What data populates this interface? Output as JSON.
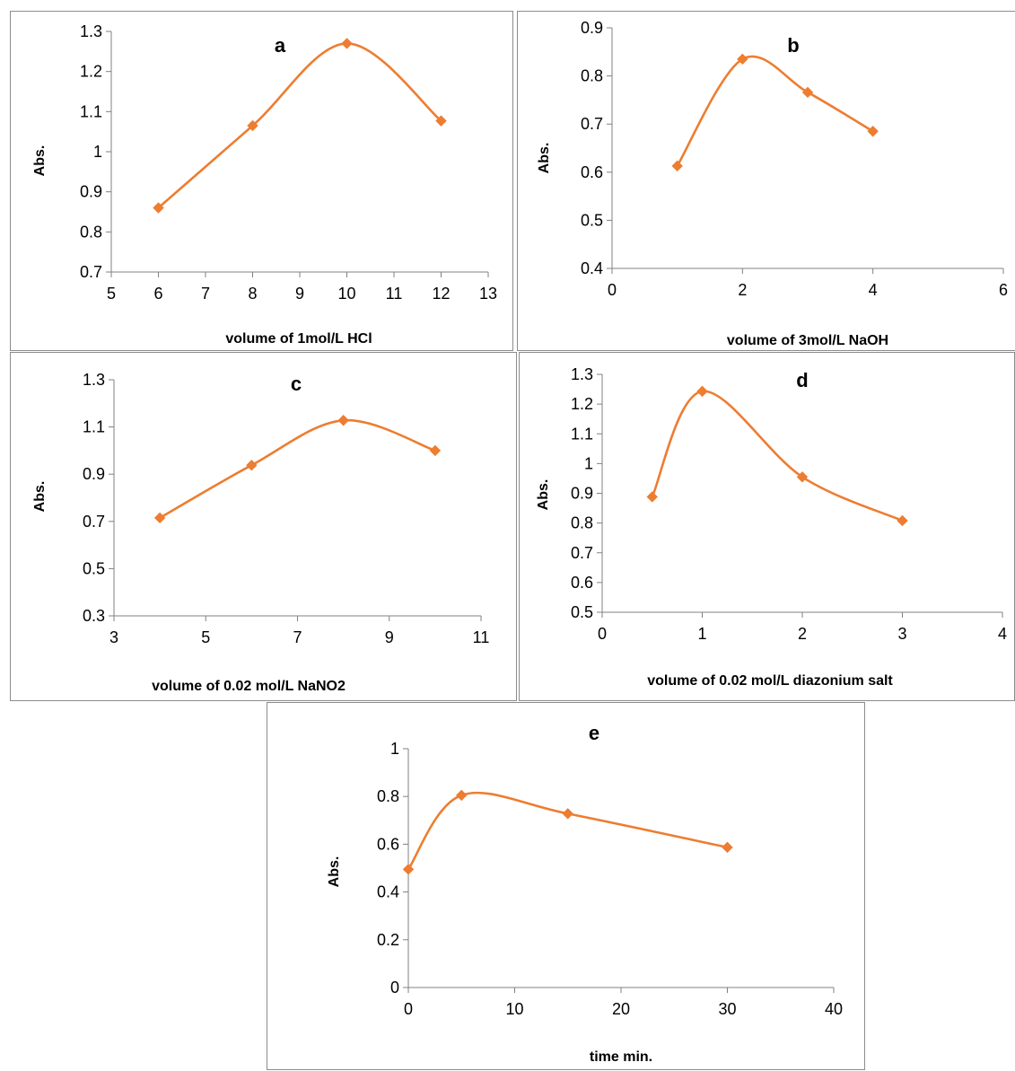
{
  "chart_data": [
    {
      "id": "a",
      "type": "line",
      "title": "a",
      "xlabel": "volume of 1mol/L  HCl",
      "ylabel": "Abs.",
      "xlim": [
        5,
        13
      ],
      "ylim": [
        0.7,
        1.3
      ],
      "xticks": [
        5,
        6,
        7,
        8,
        9,
        10,
        11,
        12,
        13
      ],
      "yticks": [
        0.7,
        0.8,
        0.9,
        1.0,
        1.1,
        1.2,
        1.3
      ],
      "xtick_labels": [
        "5",
        "6",
        "7",
        "8",
        "9",
        "10",
        "11",
        "12",
        "13"
      ],
      "ytick_labels": [
        "0.7",
        "0.8",
        "0.9",
        "1",
        "1.1",
        "1.2",
        "1.3"
      ],
      "color": "#ED7D31",
      "grid": false,
      "smooth": true,
      "series": [
        {
          "x": [
            6,
            8,
            10,
            12
          ],
          "y": [
            0.86,
            1.065,
            1.27,
            1.077
          ]
        }
      ]
    },
    {
      "id": "b",
      "type": "line",
      "title": "b",
      "xlabel": "volume  of 3mol/L  NaOH",
      "ylabel": "Abs.",
      "xlim": [
        0,
        6
      ],
      "ylim": [
        0.4,
        0.9
      ],
      "xticks": [
        0,
        2,
        4,
        6
      ],
      "yticks": [
        0.4,
        0.5,
        0.6,
        0.7,
        0.8,
        0.9
      ],
      "xtick_labels": [
        "0",
        "2",
        "4",
        "6"
      ],
      "ytick_labels": [
        "0.4",
        "0.5",
        "0.6",
        "0.7",
        "0.8",
        "0.9"
      ],
      "color": "#ED7D31",
      "grid": false,
      "smooth": true,
      "series": [
        {
          "x": [
            1,
            2,
            3,
            4
          ],
          "y": [
            0.613,
            0.835,
            0.766,
            0.685
          ]
        }
      ]
    },
    {
      "id": "c",
      "type": "line",
      "title": "c",
      "xlabel": "volume of 0.02 mol/L NaNO2",
      "ylabel": "Abs.",
      "xlim": [
        3,
        11
      ],
      "ylim": [
        0.3,
        1.3
      ],
      "xticks": [
        3,
        5,
        7,
        9,
        11
      ],
      "yticks": [
        0.3,
        0.5,
        0.7,
        0.9,
        1.1,
        1.3
      ],
      "xtick_labels": [
        "3",
        "5",
        "7",
        "9",
        "11"
      ],
      "ytick_labels": [
        "0.3",
        "0.5",
        "0.7",
        "0.9",
        "1.1",
        "1.3"
      ],
      "color": "#ED7D31",
      "grid": false,
      "smooth": true,
      "series": [
        {
          "x": [
            4,
            6,
            8,
            10
          ],
          "y": [
            0.715,
            0.938,
            1.128,
            1.0
          ]
        }
      ]
    },
    {
      "id": "d",
      "type": "line",
      "title": "d",
      "xlabel": "volume of 0.02 mol/L diazonium salt",
      "ylabel": "Abs.",
      "xlim": [
        0,
        4
      ],
      "ylim": [
        0.5,
        1.3
      ],
      "xticks": [
        0,
        1,
        2,
        3,
        4
      ],
      "yticks": [
        0.5,
        0.6,
        0.7,
        0.8,
        0.9,
        1.0,
        1.1,
        1.2,
        1.3
      ],
      "xtick_labels": [
        "0",
        "1",
        "2",
        "3",
        "4"
      ],
      "ytick_labels": [
        "0.5",
        "0.6",
        "0.7",
        "0.8",
        "0.9",
        "1",
        "1.1",
        "1.2",
        "1.3"
      ],
      "color": "#ED7D31",
      "grid": false,
      "smooth": true,
      "series": [
        {
          "x": [
            0.5,
            1,
            2,
            3
          ],
          "y": [
            0.888,
            1.243,
            0.955,
            0.808
          ]
        }
      ]
    },
    {
      "id": "e",
      "type": "line",
      "title": "e",
      "xlabel": "time min.",
      "ylabel": "Abs.",
      "xlim": [
        0,
        40
      ],
      "ylim": [
        0,
        1
      ],
      "xticks": [
        0,
        10,
        20,
        30,
        40
      ],
      "yticks": [
        0,
        0.2,
        0.4,
        0.6,
        0.8,
        1.0
      ],
      "xtick_labels": [
        "0",
        "10",
        "20",
        "30",
        "40"
      ],
      "ytick_labels": [
        "0",
        "0.2",
        "0.4",
        "0.6",
        "0.8",
        "1"
      ],
      "color": "#ED7D31",
      "grid": false,
      "smooth": true,
      "series": [
        {
          "x": [
            0,
            5,
            15,
            30
          ],
          "y": [
            0.495,
            0.805,
            0.728,
            0.587
          ]
        }
      ]
    }
  ]
}
